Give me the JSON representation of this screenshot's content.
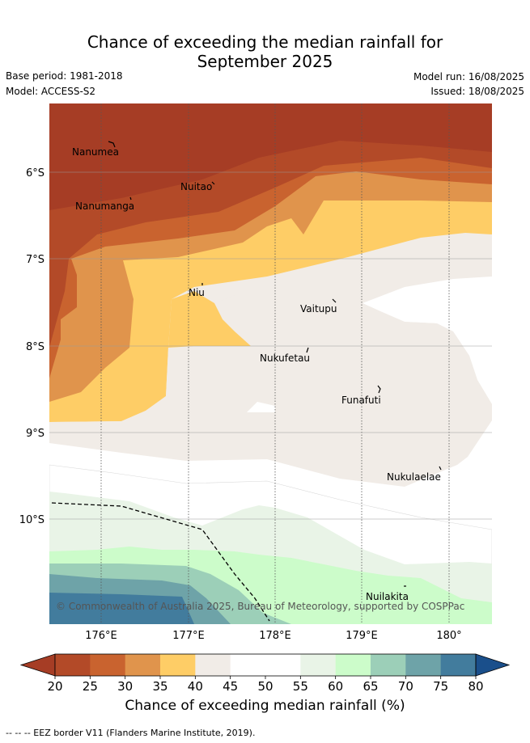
{
  "header": {
    "title_line1": "Chance of exceeding the median rainfall for",
    "title_line2": "September 2025",
    "base_period": "Base period: 1981-2018",
    "model": "Model: ACCESS-S2",
    "model_run": "Model run: 16/08/2025",
    "issued": "Issued: 18/08/2025"
  },
  "map": {
    "lat_labels": [
      "6°S",
      "7°S",
      "8°S",
      "9°S",
      "10°S"
    ],
    "lon_labels": [
      "176°E",
      "177°E",
      "178°E",
      "179°E",
      "180°"
    ],
    "places": [
      "Nanumea",
      "Nuitao",
      "Nanumanga",
      "Niu",
      "Vaitupu",
      "Nukufetau",
      "Funafuti",
      "Nukulaelae",
      "Nuilakita"
    ],
    "copyright": "© Commonwealth of Australia 2025, Bureau of Meteorology, supported by COSPPac"
  },
  "colorbar": {
    "ticks": [
      "20",
      "25",
      "30",
      "35",
      "40",
      "45",
      "50",
      "55",
      "60",
      "65",
      "70",
      "75",
      "80"
    ],
    "colors": [
      "#a63d25",
      "#b34a28",
      "#c9632f",
      "#e0944c",
      "#fecd66",
      "#f1ece7",
      "#ffffff",
      "#ffffff",
      "#e9f4e7",
      "#ccfcca",
      "#9ccfb8",
      "#6ea3a8",
      "#427c9d",
      "#1a4f8b"
    ],
    "title": "Chance of exceeding median rainfall (%)"
  },
  "legend": {
    "eez": "-- -- -- EEZ border V11 (Flanders Marine Institute, 2019)."
  }
}
